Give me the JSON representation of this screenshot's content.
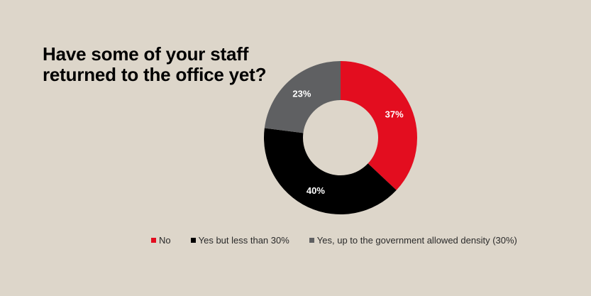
{
  "title": "Have some of your staff returned to the office yet?",
  "colors": {
    "background": "#ddd6ca",
    "no": "#e30d1f",
    "yes_less_30": "#000000",
    "yes_up_to_30": "#5f6062"
  },
  "chart_data": {
    "type": "pie",
    "subtype": "donut",
    "title": "Have some of your staff returned to the office yet?",
    "categories": [
      "No",
      "Yes but less than 30%",
      "Yes, up to the government allowed density (30%)"
    ],
    "values": [
      37,
      40,
      23
    ],
    "labels": [
      "37%",
      "40%",
      "23%"
    ],
    "unit": "%",
    "colors": [
      "#e30d1f",
      "#000000",
      "#5f6062"
    ],
    "start_angle": "12 o'clock, clockwise",
    "legend_position": "bottom"
  }
}
